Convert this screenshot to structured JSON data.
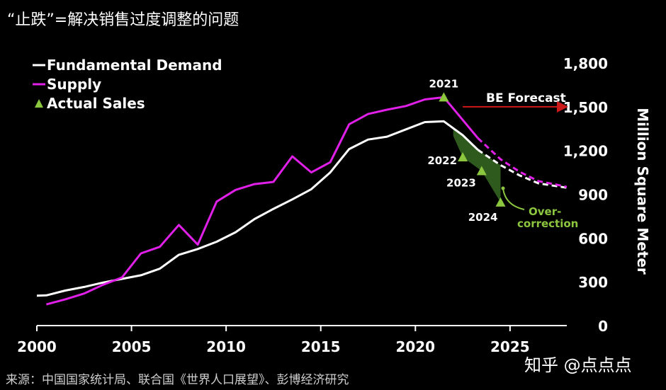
{
  "title": "“止跌”=解决销售过度调整的问题",
  "source": "来源：中国国家统计局、联合国《世界人口展望》、彭博经济研究",
  "watermark": "知乎 @点点点",
  "colors": {
    "background": "#000000",
    "demand": "#ffffff",
    "supply": "#e020e8",
    "sales": "#8cc63f",
    "gap_fill": "#2f5a1e",
    "forecast_arrow": "#cc1a1a"
  },
  "chart_data": {
    "type": "line",
    "title": "“止跌”=解决销售过度调整的问题",
    "xlabel": "",
    "ylabel": "Million Square Meter",
    "xlim": [
      2000,
      2028
    ],
    "ylim": [
      0,
      1800
    ],
    "x_ticks": [
      "2000",
      "2005",
      "2010",
      "2015",
      "2020",
      "2025"
    ],
    "y_ticks": [
      "0",
      "300",
      "600",
      "900",
      "1,200",
      "1,500",
      "1,800"
    ],
    "legend": [
      "Fundamental Demand",
      "Supply",
      "Actual Sales"
    ],
    "legend_position": "top-left",
    "series": [
      {
        "name": "Fundamental Demand",
        "style": "solid",
        "points": [
          [
            2000,
            205
          ],
          [
            2000.5,
            207
          ],
          [
            2001.5,
            240
          ],
          [
            2002.5,
            265
          ],
          [
            2003.5,
            295
          ],
          [
            2004.5,
            320
          ],
          [
            2005.5,
            345
          ],
          [
            2006.5,
            390
          ],
          [
            2007.5,
            485
          ],
          [
            2008.5,
            525
          ],
          [
            2009.5,
            575
          ],
          [
            2010.5,
            640
          ],
          [
            2011.5,
            730
          ],
          [
            2012.5,
            800
          ],
          [
            2013.5,
            865
          ],
          [
            2014.5,
            935
          ],
          [
            2015.5,
            1050
          ],
          [
            2016.5,
            1210
          ],
          [
            2017.5,
            1275
          ],
          [
            2018.5,
            1295
          ],
          [
            2019.5,
            1345
          ],
          [
            2020.5,
            1395
          ],
          [
            2021.5,
            1400
          ],
          [
            2022.5,
            1305
          ],
          [
            2023.3,
            1205
          ]
        ]
      },
      {
        "name": "Fundamental Demand (forecast)",
        "style": "dashed",
        "points": [
          [
            2023.3,
            1205
          ],
          [
            2024.5,
            1100
          ],
          [
            2025.5,
            1030
          ],
          [
            2026.5,
            975
          ],
          [
            2027.5,
            955
          ],
          [
            2028,
            945
          ]
        ]
      },
      {
        "name": "Supply",
        "style": "solid",
        "points": [
          [
            2000.5,
            145
          ],
          [
            2001.5,
            180
          ],
          [
            2002.5,
            220
          ],
          [
            2003.5,
            280
          ],
          [
            2004.5,
            330
          ],
          [
            2005.5,
            495
          ],
          [
            2006.5,
            540
          ],
          [
            2007.5,
            690
          ],
          [
            2008.5,
            555
          ],
          [
            2009.5,
            850
          ],
          [
            2010.5,
            930
          ],
          [
            2011.5,
            970
          ],
          [
            2012.5,
            985
          ],
          [
            2013.5,
            1160
          ],
          [
            2014.5,
            1050
          ],
          [
            2015.5,
            1120
          ],
          [
            2016.5,
            1380
          ],
          [
            2017.5,
            1450
          ],
          [
            2018.5,
            1480
          ],
          [
            2019.5,
            1505
          ],
          [
            2020.5,
            1550
          ],
          [
            2021.5,
            1565
          ],
          [
            2022.5,
            1410
          ],
          [
            2023.3,
            1285
          ]
        ]
      },
      {
        "name": "Supply (forecast)",
        "style": "dashed",
        "points": [
          [
            2023.3,
            1285
          ],
          [
            2024.5,
            1140
          ],
          [
            2025.5,
            1055
          ],
          [
            2026.5,
            990
          ],
          [
            2027.5,
            965
          ],
          [
            2028,
            950
          ]
        ]
      }
    ],
    "actual_sales": [
      {
        "year": 2021,
        "x": 2021.5,
        "value": 1565,
        "label": "2021"
      },
      {
        "year": 2022,
        "x": 2022.5,
        "value": 1155,
        "label": "2022"
      },
      {
        "year": 2023,
        "x": 2023.5,
        "value": 1060,
        "label": "2023"
      },
      {
        "year": 2024,
        "x": 2024.5,
        "value": 845,
        "label": "2024"
      }
    ],
    "annotations": {
      "forecast_label": "BE Forecast",
      "forecast_start_x": 2022.5,
      "forecast_end_x": 2028,
      "forecast_y": 1500,
      "overcorrection_line1": "Over-",
      "overcorrection_line2": "correction"
    }
  }
}
